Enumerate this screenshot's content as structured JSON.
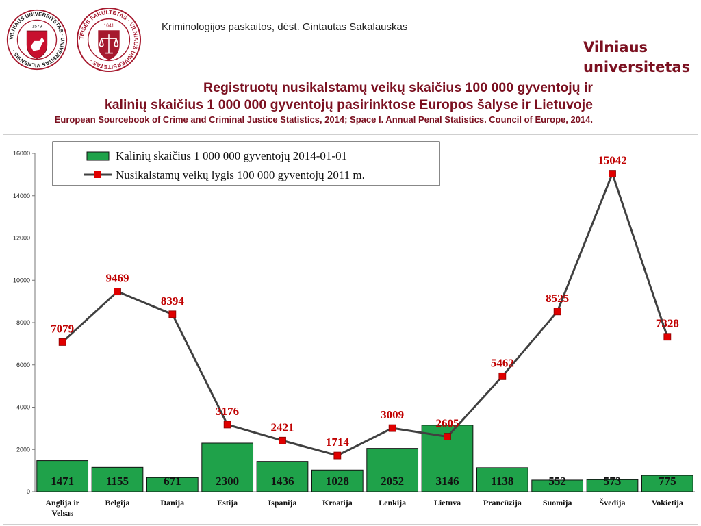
{
  "header": {
    "lecture": "Kriminologijos paskaitos, dėst. Gintautas Sakalauskas",
    "brand_line1": "Vilniaus",
    "brand_line2": "universitetas",
    "title_line1": "Registruotų nusikalstamų veikų skaičius 100 000 gyventojų ir",
    "title_line2": "kalinių skaičius 1 000 000  gyventojų pasirinktose Europos šalyse ir Lietuvoje",
    "subtitle": "European Sourcebook of Crime and Criminal Justice Statistics, 2014; Space I. Annual Penal Statistics. Council of Europe, 2014."
  },
  "logos": {
    "vu_ring_text": "VILNIAUS UNIVERSITETAS · UNIVERSITAS VILNENSIS ·",
    "vu_year": "1579",
    "tf_ring_text": "TEISĖS FAKULTETAS · VILNIAUS UNIVERSITETAS ·",
    "tf_year": "1641",
    "brand_color": "#a6192e"
  },
  "chart_data": {
    "type": "bar",
    "categories": [
      "Anglija ir Velsas",
      "Belgija",
      "Danija",
      "Estija",
      "Ispanija",
      "Kroatija",
      "Lenkija",
      "Lietuva",
      "Prancūzija",
      "Suomija",
      "Švedija",
      "Vokietija"
    ],
    "ylim": [
      0,
      16000
    ],
    "yticks": [
      0,
      2000,
      4000,
      6000,
      8000,
      10000,
      12000,
      14000,
      16000
    ],
    "legend_position": "top-left",
    "grid": false,
    "series": [
      {
        "name": "Kalinių skaičius 1 000 000 gyventojų 2014-01-01",
        "type": "bar",
        "color": "#1fa24a",
        "values": [
          1471,
          1155,
          671,
          2300,
          1436,
          1028,
          2052,
          3146,
          1138,
          552,
          573,
          775
        ]
      },
      {
        "name": "Nusikalstamų veikų lygis 100 000 gyventojų 2011 m.",
        "type": "line",
        "color": "#404040",
        "marker_color": "#e00000",
        "values": [
          7079,
          9469,
          8394,
          3176,
          2421,
          1714,
          3009,
          2605,
          5462,
          8525,
          15042,
          7328
        ]
      }
    ]
  }
}
